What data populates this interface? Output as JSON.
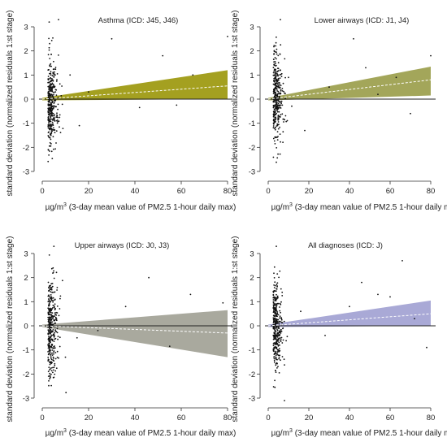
{
  "figure": {
    "y_axis_label": "standard deviation (normalized residuals 1:st stage)",
    "x_axis_label_prefix": "µg/m",
    "x_axis_label_sup": "3",
    "x_axis_label_rest": " (3-day mean value of PM2.5 1-hour daily max)"
  },
  "chart_data": [
    {
      "type": "scatter",
      "title": "Asthma (ICD: J45, J46)",
      "xlim": [
        0,
        80
      ],
      "ylim": [
        -3,
        3
      ],
      "xticks": [
        0,
        20,
        40,
        60,
        80
      ],
      "yticks": [
        -3,
        -2,
        -1,
        0,
        1,
        2,
        3
      ],
      "band_color": "#a4a020",
      "band": {
        "x": [
          0,
          80
        ],
        "lower": [
          -0.05,
          0.0
        ],
        "upper": [
          0.05,
          1.2
        ]
      },
      "trend": {
        "x": [
          0,
          80
        ],
        "y": [
          0.0,
          0.55
        ]
      },
      "outliers": [
        [
          3,
          3.2
        ],
        [
          7,
          3.3
        ],
        [
          12,
          1.0
        ],
        [
          16,
          -1.1
        ],
        [
          20,
          0.3
        ],
        [
          30,
          2.5
        ],
        [
          42,
          -0.35
        ],
        [
          52,
          1.8
        ],
        [
          58,
          -0.25
        ],
        [
          65,
          1.0
        ],
        [
          80,
          2.6
        ]
      ],
      "cluster": {
        "x_center": 4,
        "x_spread": 2.5,
        "y_center": -0.1,
        "y_spread": 0.9,
        "count": 360,
        "seed": 11
      }
    },
    {
      "type": "scatter",
      "title": "Lower airways (ICD: J1, J4)",
      "xlim": [
        0,
        80
      ],
      "ylim": [
        -3,
        3
      ],
      "xticks": [
        0,
        20,
        40,
        60,
        80
      ],
      "yticks": [
        -3,
        -2,
        -1,
        0,
        1,
        2,
        3
      ],
      "band_color": "#a3a65a",
      "band": {
        "x": [
          0,
          80
        ],
        "lower": [
          -0.05,
          0.15
        ],
        "upper": [
          0.05,
          1.35
        ]
      },
      "trend": {
        "x": [
          0,
          80
        ],
        "y": [
          0.0,
          0.8
        ]
      },
      "outliers": [
        [
          6,
          3.3
        ],
        [
          10,
          0.9
        ],
        [
          18,
          -1.3
        ],
        [
          30,
          0.5
        ],
        [
          42,
          2.5
        ],
        [
          48,
          1.3
        ],
        [
          54,
          0.2
        ],
        [
          63,
          0.9
        ],
        [
          70,
          -0.6
        ],
        [
          80,
          1.8
        ]
      ],
      "cluster": {
        "x_center": 4,
        "x_spread": 2.5,
        "y_center": 0.0,
        "y_spread": 0.9,
        "count": 360,
        "seed": 23
      }
    },
    {
      "type": "scatter",
      "title": "Upper airways (ICD: J0, J3)",
      "xlim": [
        0,
        80
      ],
      "ylim": [
        -3,
        3
      ],
      "xticks": [
        0,
        20,
        40,
        60,
        80
      ],
      "yticks": [
        -3,
        -2,
        -1,
        0,
        1,
        2,
        3
      ],
      "band_color": "#a9a99e",
      "band": {
        "x": [
          0,
          80
        ],
        "lower": [
          -0.05,
          -1.3
        ],
        "upper": [
          0.05,
          0.65
        ]
      },
      "trend": {
        "x": [
          0,
          80
        ],
        "y": [
          0.0,
          -0.3
        ]
      },
      "outliers": [
        [
          5,
          3.3
        ],
        [
          10,
          -1.3
        ],
        [
          15,
          -0.5
        ],
        [
          24,
          -0.2
        ],
        [
          36,
          0.8
        ],
        [
          46,
          2.0
        ],
        [
          55,
          -0.85
        ],
        [
          64,
          1.3
        ],
        [
          78,
          0.95
        ]
      ],
      "cluster": {
        "x_center": 4,
        "x_spread": 2.5,
        "y_center": -0.1,
        "y_spread": 1.0,
        "count": 360,
        "seed": 37
      }
    },
    {
      "type": "scatter",
      "title": "All diagnoses (ICD: J)",
      "xlim": [
        0,
        80
      ],
      "ylim": [
        -3,
        3
      ],
      "xticks": [
        0,
        20,
        40,
        60,
        80
      ],
      "yticks": [
        -3,
        -2,
        -1,
        0,
        1,
        2,
        3
      ],
      "band_color": "#a9a9d6",
      "band": {
        "x": [
          0,
          80
        ],
        "lower": [
          -0.05,
          0.0
        ],
        "upper": [
          0.05,
          1.05
        ]
      },
      "trend": {
        "x": [
          0,
          80
        ],
        "y": [
          0.0,
          0.5
        ]
      },
      "outliers": [
        [
          4,
          3.3
        ],
        [
          8,
          -3.1
        ],
        [
          16,
          0.6
        ],
        [
          28,
          -0.4
        ],
        [
          40,
          0.8
        ],
        [
          46,
          1.8
        ],
        [
          54,
          1.3
        ],
        [
          60,
          1.2
        ],
        [
          66,
          2.7
        ],
        [
          72,
          0.3
        ],
        [
          78,
          -0.9
        ]
      ],
      "cluster": {
        "x_center": 4,
        "x_spread": 2.5,
        "y_center": -0.05,
        "y_spread": 0.95,
        "count": 360,
        "seed": 53
      }
    }
  ]
}
